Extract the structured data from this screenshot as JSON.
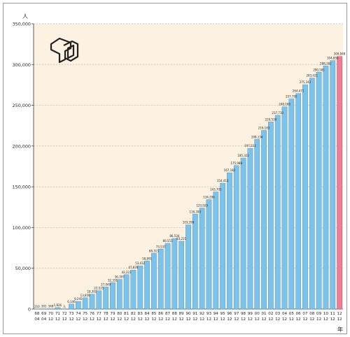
{
  "chart_data": {
    "type": "bar",
    "unit_label": "人",
    "x_unit_label": "年",
    "categories": [
      [
        "68",
        "04"
      ],
      [
        "69",
        "04"
      ],
      [
        "70",
        "12"
      ],
      [
        "71",
        "12"
      ],
      [
        "72",
        "12"
      ],
      [
        "73",
        "12"
      ],
      [
        "74",
        "12"
      ],
      [
        "75",
        "12"
      ],
      [
        "76",
        "12"
      ],
      [
        "77",
        "12"
      ],
      [
        "78",
        "12"
      ],
      [
        "79",
        "12"
      ],
      [
        "80",
        "12"
      ],
      [
        "81",
        "12"
      ],
      [
        "82",
        "12"
      ],
      [
        "83",
        "12"
      ],
      [
        "84",
        "12"
      ],
      [
        "85",
        "12"
      ],
      [
        "86",
        "12"
      ],
      [
        "87",
        "12"
      ],
      [
        "88",
        "12"
      ],
      [
        "89",
        "12"
      ],
      [
        "90",
        "12"
      ],
      [
        "91",
        "12"
      ],
      [
        "92",
        "12"
      ],
      [
        "93",
        "12"
      ],
      [
        "94",
        "12"
      ],
      [
        "95",
        "12"
      ],
      [
        "96",
        "12"
      ],
      [
        "97",
        "12"
      ],
      [
        "98",
        "12"
      ],
      [
        "99",
        "12"
      ],
      [
        "00",
        "12"
      ],
      [
        "01",
        "12"
      ],
      [
        "02",
        "12"
      ],
      [
        "03",
        "12"
      ],
      [
        "04",
        "12"
      ],
      [
        "05",
        "12"
      ],
      [
        "06",
        "12"
      ],
      [
        "07",
        "12"
      ],
      [
        "08",
        "12"
      ],
      [
        "09",
        "12"
      ],
      [
        "10",
        "12"
      ],
      [
        "11",
        "12"
      ],
      [
        "12",
        "12"
      ]
    ],
    "values": [
      210,
      301,
      348,
      1826,
      3,
      6146,
      9245,
      13859,
      18302,
      22525,
      27049,
      32331,
      36397,
      42223,
      47878,
      53032,
      58891,
      68313,
      73537,
      80553,
      86534,
      83221,
      103298,
      116393,
      123929,
      134296,
      143705,
      154413,
      167182,
      175988,
      185322,
      197213,
      208134,
      219183,
      229539,
      237710,
      248168,
      257795,
      264471,
      275242,
      283421,
      290581,
      298262,
      304856,
      309948
    ],
    "value_labels": [
      "210",
      "301",
      "348",
      "1,826",
      "3,",
      "6,146",
      "9,245",
      "13,859",
      "18,302",
      "22,525",
      "27,049",
      "32,331",
      "36,397",
      "42,223",
      "47,878",
      "53,032",
      "58,891",
      "68,313",
      "73,537",
      "80,553",
      "86,534",
      "83,221",
      "103,298",
      "116,393",
      "123,929",
      "134,296",
      "143,705",
      "154,413",
      "167,182",
      "175,988",
      "185,322",
      "197,213",
      "208,134",
      "219,183",
      "229,539",
      "237,710",
      "248,168",
      "257,795",
      "264,471",
      "275,242",
      "283,421",
      "290,581",
      "298,262",
      "304,856",
      "309,948"
    ],
    "y_ticks": [
      0,
      50000,
      100000,
      150000,
      200000,
      250000,
      300000,
      350000
    ],
    "y_tick_labels": [
      "0",
      "50,000",
      "100,000",
      "150,000",
      "200,000",
      "250,000",
      "300,000",
      "350,000"
    ],
    "ylim": [
      0,
      350000
    ],
    "grid": true,
    "colors": {
      "plot_bg": "#fdf2e1",
      "bar": "#7cc3ec",
      "bar_edge": "#3d8fc4",
      "highlight_bar": "#ee7d96",
      "highlight_edge": "#c04a66",
      "grid": "#b7b7b7"
    },
    "highlight_index": 44,
    "logo_icon": "td-logo-icon"
  }
}
